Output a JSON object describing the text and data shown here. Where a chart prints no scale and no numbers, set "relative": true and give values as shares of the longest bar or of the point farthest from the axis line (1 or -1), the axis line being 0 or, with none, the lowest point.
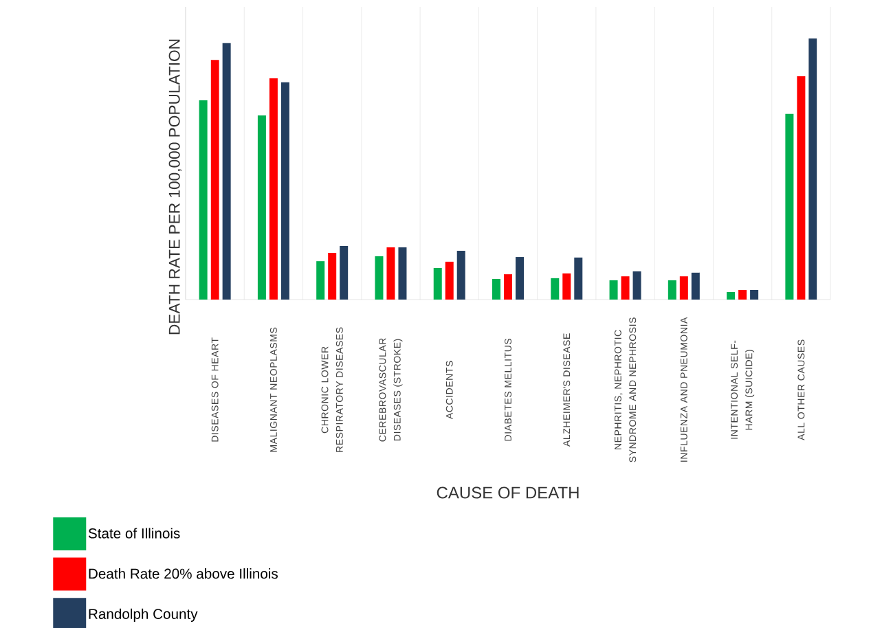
{
  "chart_data": {
    "type": "bar",
    "relative": true,
    "grid": "x",
    "legend": "bottom left",
    "xlabel": "CAUSE OF DEATH",
    "ylabel": "DEATH RATE PER 100,000 POPULATION",
    "categories": [
      "DISEASES OF HEART",
      "MALIGNANT NEOPLASMS",
      "CHRONIC LOWER RESPIRATORY DISEASES",
      "CEREBROVASCULAR DISEASES (STROKE)",
      "ACCIDENTS",
      "DIABETES MELLITUS",
      "ALZHEIMER'S DISEASE",
      "NEPHRITIS, NEPHROTIC SYNDROME AND NEPHROSIS",
      "INFLUENZA AND PNEUMONIA",
      "INTENTIONAL SELF-HARM (SUICIDE)",
      "ALL OTHER CAUSES"
    ],
    "series": [
      {
        "name": "State of Illinois",
        "color": "#00b050",
        "values": [
          0.763,
          0.705,
          0.147,
          0.166,
          0.121,
          0.079,
          0.082,
          0.074,
          0.074,
          0.029,
          0.711
        ]
      },
      {
        "name": "Death Rate 20% above Illinois",
        "color": "#ff0000",
        "values": [
          0.918,
          0.847,
          0.179,
          0.2,
          0.145,
          0.097,
          0.1,
          0.089,
          0.089,
          0.037,
          0.855
        ]
      },
      {
        "name": "Randolph County",
        "color": "#243f60",
        "values": [
          0.982,
          0.832,
          0.205,
          0.2,
          0.187,
          0.163,
          0.161,
          0.108,
          0.103,
          0.037,
          1.0
        ]
      }
    ]
  }
}
